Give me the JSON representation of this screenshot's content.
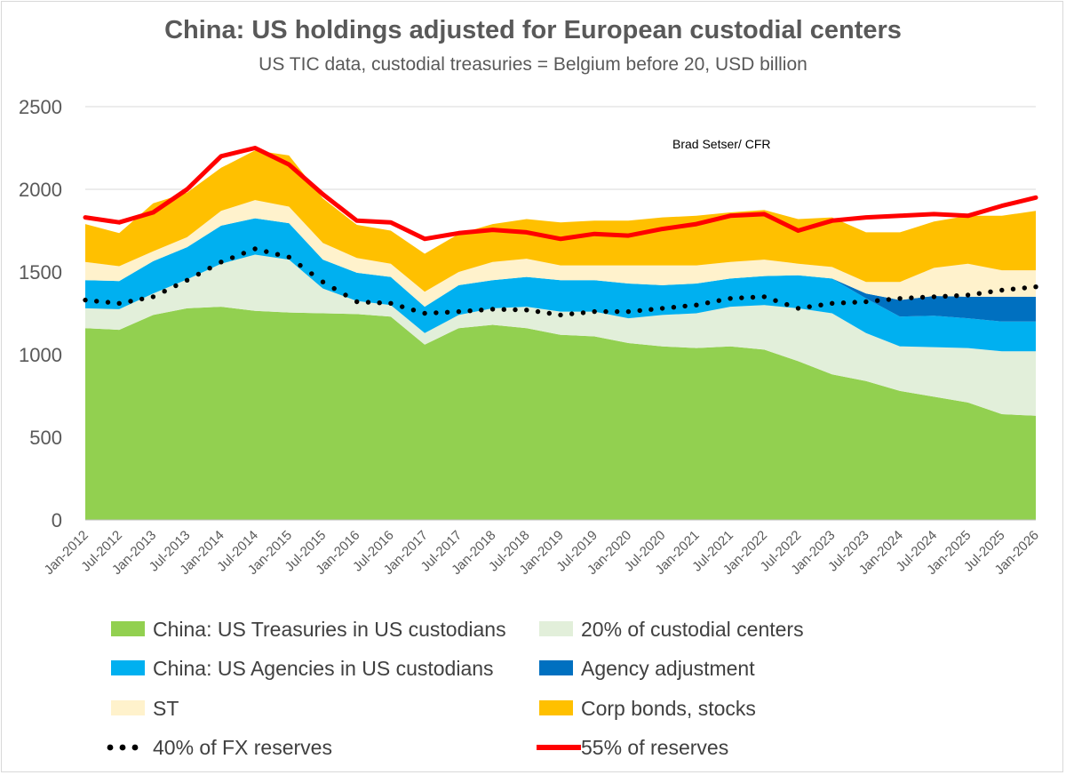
{
  "chart_data": {
    "type": "area",
    "title": "China: US holdings adjusted for European custodial centers",
    "subtitle": "US TIC data, custodial treasuries = Belgium before 20, USD billion",
    "annotation": "Brad Setser/ CFR",
    "xlabel": "",
    "ylabel": "",
    "ylim": [
      0,
      2500
    ],
    "yticks": [
      0,
      500,
      1000,
      1500,
      2000,
      2500
    ],
    "grid": true,
    "legend_position": "bottom",
    "x_tick_labels": [
      "Jan-2012",
      "Jul-2012",
      "Jan-2013",
      "Jul-2013",
      "Jan-2014",
      "Jul-2014",
      "Jan-2015",
      "Jul-2015",
      "Jan-2016",
      "Jul-2016",
      "Jan-2017",
      "Jul-2017",
      "Jan-2018",
      "Jul-2018",
      "Jan-2019",
      "Jul-2019",
      "Jan-2020",
      "Jul-2020",
      "Jan-2021",
      "Jul-2021",
      "Jan-2022",
      "Jul-2022",
      "Jan-2023",
      "Jul-2023",
      "Jan-2024",
      "Jul-2024",
      "Jan-2025",
      "Jul-2025",
      "Jan-2026"
    ],
    "stack_order": [
      "China: US Treasuries in US custodians",
      "20% of custodial centers",
      "China: US Agencies in US custodians",
      "Agency adjustment",
      "ST",
      "Corp bonds, stocks"
    ],
    "series": [
      {
        "name": "China: US Treasuries in US custodians",
        "kind": "area",
        "color": "#92d050",
        "values": [
          1160,
          1150,
          1240,
          1280,
          1290,
          1265,
          1255,
          1250,
          1245,
          1230,
          1060,
          1160,
          1180,
          1160,
          1120,
          1110,
          1070,
          1050,
          1040,
          1050,
          1030,
          960,
          880,
          840,
          780,
          745,
          710,
          640,
          630
        ]
      },
      {
        "name": "20% of custodial centers",
        "kind": "area",
        "color": "#e2efda",
        "values": [
          120,
          125,
          130,
          175,
          260,
          340,
          320,
          150,
          80,
          70,
          70,
          80,
          100,
          130,
          140,
          150,
          150,
          190,
          210,
          240,
          270,
          320,
          370,
          290,
          270,
          300,
          330,
          380,
          390
        ]
      },
      {
        "name": "China: US Agencies in US custodians",
        "kind": "area",
        "color": "#00b0f0",
        "values": [
          170,
          170,
          195,
          195,
          230,
          220,
          220,
          175,
          170,
          170,
          160,
          180,
          170,
          180,
          190,
          190,
          210,
          180,
          180,
          170,
          175,
          200,
          210,
          210,
          180,
          190,
          180,
          180,
          180
        ]
      },
      {
        "name": "Agency adjustment",
        "kind": "area",
        "color": "#0070c0",
        "values": [
          0,
          0,
          0,
          0,
          0,
          0,
          0,
          0,
          0,
          0,
          0,
          0,
          0,
          0,
          0,
          0,
          0,
          0,
          0,
          0,
          0,
          0,
          0,
          30,
          100,
          120,
          130,
          150,
          150
        ]
      },
      {
        "name": "ST",
        "kind": "area",
        "color": "#fff2cc",
        "values": [
          110,
          90,
          60,
          60,
          90,
          110,
          100,
          100,
          90,
          80,
          90,
          80,
          110,
          110,
          90,
          90,
          110,
          120,
          110,
          100,
          100,
          70,
          70,
          70,
          110,
          170,
          200,
          160,
          160
        ]
      },
      {
        "name": "Corp bonds, stocks",
        "kind": "area",
        "color": "#ffc000",
        "values": [
          230,
          200,
          290,
          270,
          260,
          300,
          310,
          270,
          200,
          200,
          230,
          230,
          230,
          240,
          260,
          270,
          270,
          290,
          300,
          300,
          300,
          270,
          300,
          300,
          300,
          280,
          290,
          330,
          360
        ]
      },
      {
        "name": "40% of FX reserves",
        "kind": "dotted-line",
        "color": "#000000",
        "values": [
          1330,
          1310,
          1350,
          1450,
          1560,
          1640,
          1590,
          1440,
          1320,
          1310,
          1250,
          1260,
          1275,
          1270,
          1240,
          1260,
          1260,
          1280,
          1300,
          1340,
          1350,
          1280,
          1310,
          1320,
          1340,
          1350,
          1360,
          1390,
          1410
        ]
      },
      {
        "name": "55% of reserves",
        "kind": "line",
        "color": "#ff0000",
        "values": [
          1830,
          1800,
          1860,
          2000,
          2200,
          2250,
          2150,
          1970,
          1810,
          1800,
          1700,
          1735,
          1755,
          1740,
          1700,
          1730,
          1720,
          1760,
          1790,
          1840,
          1850,
          1750,
          1810,
          1830,
          1840,
          1850,
          1840,
          1900,
          1950
        ]
      }
    ]
  }
}
